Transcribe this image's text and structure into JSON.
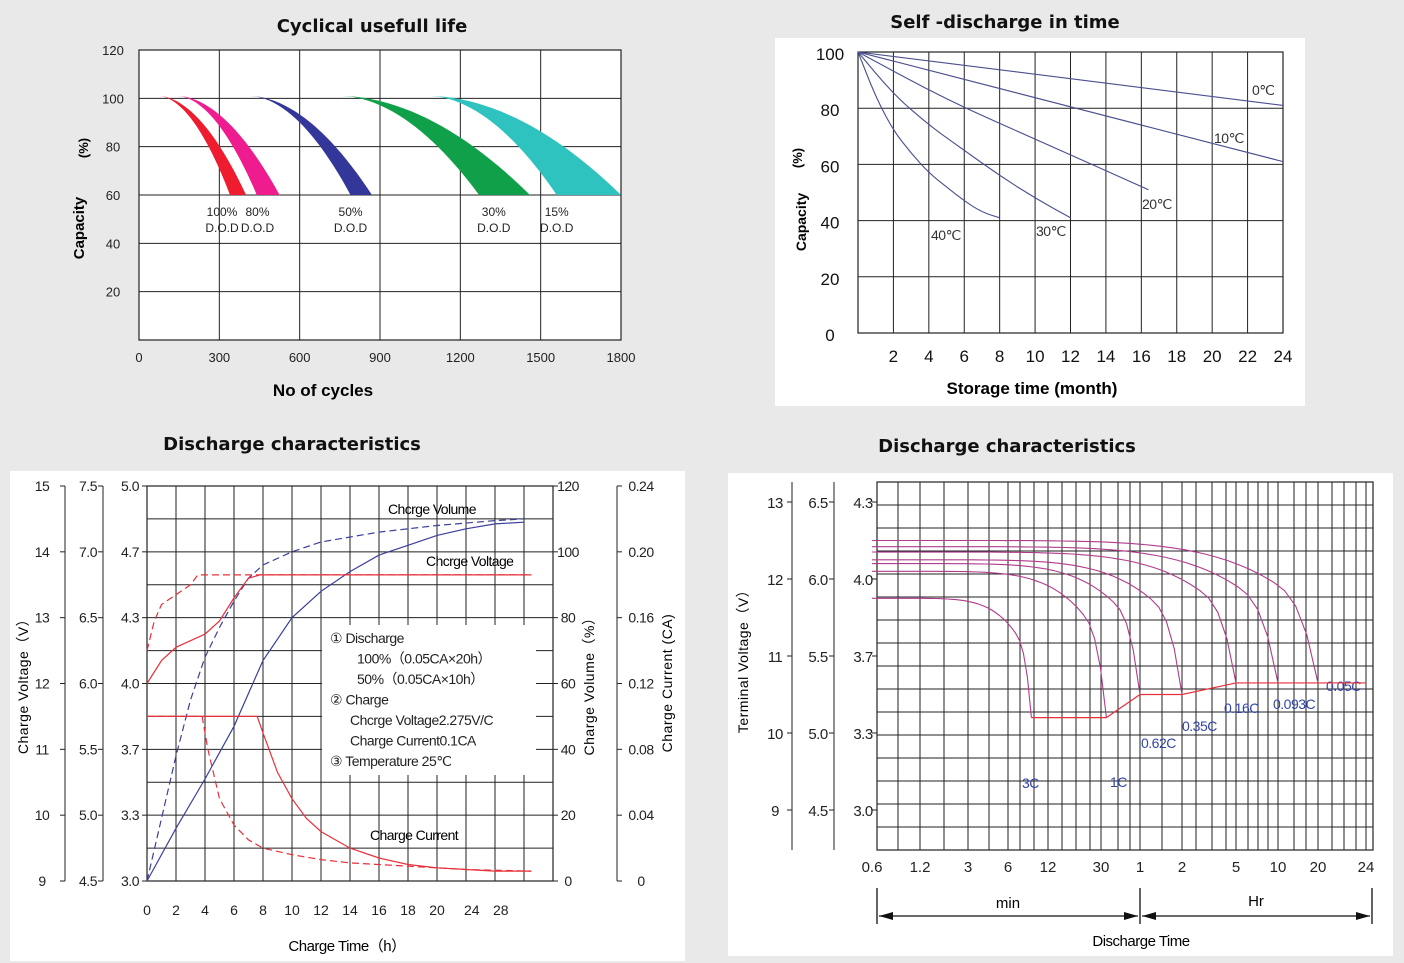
{
  "chart_data": [
    {
      "id": "cycle",
      "type": "area",
      "title": "Cyclical usefull life",
      "xlabel": "No of cycles",
      "ylabel": "Capacity",
      "ylabel_unit": "(%)",
      "xlim": [
        0,
        1800
      ],
      "ylim": [
        0,
        120
      ],
      "x_ticks": [
        "0",
        "300",
        "600",
        "900",
        "1200",
        "1500",
        "1800"
      ],
      "y_ticks": [
        "20",
        "40",
        "60",
        "80",
        "100",
        "120"
      ],
      "grid": true,
      "series": [
        {
          "name": "100% D.O.D",
          "label_1": "100%",
          "label_2": "D.O.D",
          "color": "#ee1c2e",
          "start": 70,
          "end_inner": 340,
          "end_outer": 400
        },
        {
          "name": "80% D.O.D",
          "label_1": "80%",
          "label_2": "D.O.D",
          "color": "#ee1c8e",
          "start": 140,
          "end_inner": 440,
          "end_outer": 525
        },
        {
          "name": "50% D.O.D",
          "label_1": "50%",
          "label_2": "D.O.D",
          "color": "#34379a",
          "start": 410,
          "end_inner": 790,
          "end_outer": 870
        },
        {
          "name": "30% D.O.D",
          "label_1": "30%",
          "label_2": "D.O.D",
          "color": "#11a04a",
          "start": 750,
          "end_inner": 1270,
          "end_outer": 1460
        },
        {
          "name": "15% D.O.D",
          "label_1": "15%",
          "label_2": "D.O.D",
          "color": "#2fc3bf",
          "start": 1080,
          "end_inner": 1560,
          "end_outer": 1800
        }
      ]
    },
    {
      "id": "selfdis",
      "type": "line",
      "title": "Self  -discharge in time",
      "xlabel": "Storage time (month)",
      "ylabel": "Capacity",
      "ylabel_unit": "(%)",
      "xlim": [
        0,
        24
      ],
      "ylim": [
        0,
        100
      ],
      "x_ticks": [
        "2",
        "4",
        "6",
        "8",
        "10",
        "12",
        "14",
        "16",
        "18",
        "20",
        "22",
        "24"
      ],
      "y_ticks": [
        "0",
        "20",
        "40",
        "60",
        "80",
        "100"
      ],
      "grid": true,
      "series": [
        {
          "name": "0℃",
          "x": [
            0,
            24
          ],
          "y": [
            100,
            81
          ]
        },
        {
          "name": "10℃",
          "x": [
            0,
            24
          ],
          "y": [
            100,
            61
          ]
        },
        {
          "name": "20℃",
          "x": [
            0,
            5,
            10,
            16.4
          ],
          "y": [
            100,
            83,
            69,
            51
          ]
        },
        {
          "name": "30℃",
          "x": [
            0,
            2,
            4,
            6,
            8,
            10,
            12
          ],
          "y": [
            100,
            85,
            74,
            65,
            56,
            48,
            41
          ]
        },
        {
          "name": "40℃",
          "x": [
            0,
            1,
            2,
            3,
            4,
            5,
            6,
            7,
            8
          ],
          "y": [
            100,
            84,
            72,
            64,
            57,
            52,
            47,
            43,
            41
          ]
        }
      ]
    },
    {
      "id": "charge",
      "type": "line",
      "title": "Discharge characteristics",
      "xlabel": "Charge Time（h）",
      "ylabel_left": "Charge Voltage（V）",
      "ylabel_right_1": "Charge Volume（%）",
      "ylabel_right_2": "Charge Current (CA)",
      "xlim": [
        0,
        28
      ],
      "x_ticks": [
        "0",
        "2",
        "4",
        "6",
        "8",
        "10",
        "12",
        "14",
        "16",
        "18",
        "20",
        "24",
        "28"
      ],
      "axis_v12": [
        "9",
        "10",
        "11",
        "12",
        "13",
        "14",
        "15"
      ],
      "axis_v6": [
        "4.5",
        "5.0",
        "5.5",
        "6.0",
        "6.5",
        "7.0",
        "7.5"
      ],
      "axis_vcell": [
        "3.0",
        "3.3",
        "3.7",
        "4.0",
        "4.3",
        "4.7",
        "5.0"
      ],
      "axis_volume": [
        "0",
        "20",
        "40",
        "60",
        "80",
        "100",
        "120"
      ],
      "axis_current": [
        "0",
        "0.04",
        "0.08",
        "0.12",
        "0.16",
        "0.20",
        "0.24"
      ],
      "grid": true,
      "annotations": {
        "volume_label": "Chcrge Volume",
        "voltage_label": "Chcrge Voltage",
        "current_label": "Charge Current",
        "legend_lines": [
          "①  Discharge",
          "100%（0.05CA×20h）",
          "50%（0.05CA×10h）",
          "②  Charge",
          "Chcrge Voltage2.275V/C",
          "Charge Current0.1CA",
          "③  Temperature 25℃"
        ]
      },
      "series": [
        {
          "name": "Charge Volume 100%",
          "style": "solid",
          "color": "#3b3f9c",
          "x": [
            0,
            2,
            4,
            6,
            8,
            10,
            12,
            14,
            16,
            18,
            20,
            22,
            24,
            26
          ],
          "y": [
            0,
            16,
            31,
            47,
            67,
            80,
            88,
            94,
            99,
            102,
            105,
            107,
            108.5,
            109
          ],
          "axis": "volume"
        },
        {
          "name": "Charge Volume 50%",
          "style": "dashed",
          "color": "#3b3f9c",
          "x": [
            0,
            1,
            2,
            3,
            4,
            5,
            6,
            7,
            8,
            10,
            12,
            16,
            20,
            24,
            26
          ],
          "y": [
            0,
            19,
            38,
            55,
            68,
            77,
            85,
            92,
            96,
            100,
            103,
            106,
            108,
            109.5,
            110
          ],
          "axis": "volume"
        },
        {
          "name": "Charge Voltage 100%",
          "style": "solid",
          "color": "#e8303a",
          "x": [
            0,
            1,
            2,
            3,
            4,
            5,
            6,
            7,
            7.8,
            26.5
          ],
          "y": [
            12.0,
            12.35,
            12.55,
            12.65,
            12.75,
            12.95,
            13.3,
            13.6,
            13.65,
            13.65
          ],
          "axis": "voltage"
        },
        {
          "name": "Charge Voltage 50%",
          "style": "dashed",
          "color": "#e8303a",
          "x": [
            0,
            0.5,
            1,
            2,
            3,
            3.5,
            4,
            26.5
          ],
          "y": [
            12.5,
            12.95,
            13.2,
            13.35,
            13.5,
            13.65,
            13.65,
            13.65
          ],
          "axis": "voltage"
        },
        {
          "name": "Charge Current 100%",
          "style": "solid",
          "color": "#e8303a",
          "x": [
            0,
            7.6,
            8,
            9,
            10,
            11,
            12,
            14,
            16,
            18,
            20,
            22,
            24,
            26.5
          ],
          "y": [
            0.1,
            0.1,
            0.09,
            0.066,
            0.05,
            0.038,
            0.03,
            0.02,
            0.014,
            0.01,
            0.008,
            0.007,
            0.006,
            0.006
          ],
          "axis": "current"
        },
        {
          "name": "Charge Current 50%",
          "style": "dashed",
          "color": "#e8303a",
          "x": [
            0,
            3.8,
            4.2,
            5,
            6,
            7,
            8,
            10,
            12,
            14,
            18,
            22,
            26.5
          ],
          "y": [
            0.1,
            0.1,
            0.08,
            0.05,
            0.034,
            0.025,
            0.02,
            0.016,
            0.013,
            0.011,
            0.009,
            0.007,
            0.006
          ],
          "axis": "current"
        }
      ]
    },
    {
      "id": "discharge",
      "type": "line",
      "title": "Discharge characteristics",
      "xlabel": "Discharge Time",
      "ylabel": "Terminal Voltage（V）",
      "x_ticks": [
        "0.6",
        "1.2",
        "3",
        "6",
        "12",
        "30",
        "1",
        "2",
        "5",
        "10",
        "20",
        "24"
      ],
      "x_group_min": "min",
      "x_group_hr": "Hr",
      "axis_v12": [
        "9",
        "10",
        "11",
        "12",
        "13"
      ],
      "axis_v6": [
        "4.5",
        "5.0",
        "5.5",
        "6.0",
        "6.5"
      ],
      "axis_vcell": [
        "3.0",
        "3.3",
        "3.7",
        "4.0",
        "4.3"
      ],
      "grid": true,
      "series": [
        {
          "name": "3C",
          "v_start": 11.75,
          "end_minutes": 9,
          "v_end": 10.2
        },
        {
          "name": "1C",
          "v_start": 12.1,
          "end_minutes": 33,
          "v_end": 10.2
        },
        {
          "name": "0.62C",
          "v_start": 12.2,
          "end_minutes": 60,
          "v_end": 10.5
        },
        {
          "name": "0.35C",
          "v_start": 12.25,
          "end_minutes": 120,
          "v_end": 10.5
        },
        {
          "name": "0.16C",
          "v_start": 12.35,
          "end_minutes": 300,
          "v_end": 10.65
        },
        {
          "name": "0.093C",
          "v_start": 12.42,
          "end_minutes": 600,
          "v_end": 10.65
        },
        {
          "name": "0.05C",
          "v_start": 12.5,
          "end_minutes": 1200,
          "v_end": 10.65
        }
      ],
      "cutoff_line": {
        "x_minutes": [
          9,
          33,
          60,
          120,
          300,
          1440
        ],
        "v": [
          10.2,
          10.2,
          10.5,
          10.5,
          10.65,
          10.65
        ]
      }
    }
  ]
}
